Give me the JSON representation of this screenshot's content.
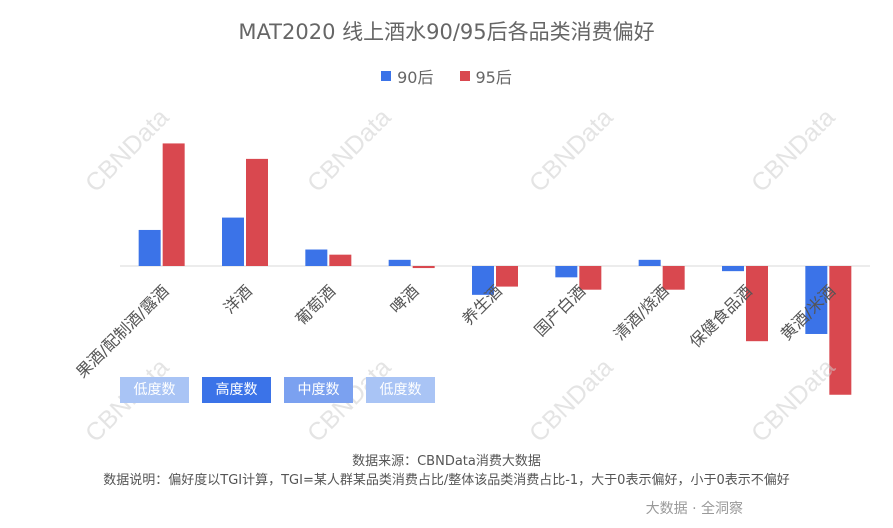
{
  "title": "MAT2020 线上酒水90/95后各品类消费偏好",
  "colors": {
    "series_90": "#3b73e8",
    "series_95": "#d9484f"
  },
  "chart_data": {
    "type": "bar",
    "categories": [
      "果酒/配制酒/露酒",
      "洋酒",
      "葡萄酒",
      "啤酒",
      "养生酒",
      "国产白酒",
      "清酒/烧酒",
      "保健食品酒",
      "黄酒/米酒"
    ],
    "series": [
      {
        "name": "90后",
        "values": [
          0.35,
          0.47,
          0.16,
          0.06,
          -0.28,
          -0.11,
          0.06,
          -0.05,
          -0.66
        ]
      },
      {
        "name": "95后",
        "values": [
          1.19,
          1.04,
          0.11,
          -0.02,
          -0.2,
          -0.23,
          -0.23,
          -0.73,
          -1.25
        ]
      }
    ],
    "ylim": [
      -1.3,
      1.3
    ],
    "grid": false,
    "legend_position": "top-center"
  },
  "tags": [
    {
      "label": "低度数",
      "color": "#a9c4f5"
    },
    {
      "label": "高度数",
      "color": "#3b73e8"
    },
    {
      "label": "中度数",
      "color": "#7ba1f0"
    },
    {
      "label": "低度数",
      "color": "#a9c4f5"
    }
  ],
  "watermark": "CBNData",
  "source": "数据来源：CBNData消费大数据",
  "note": "数据说明：偏好度以TGI计算，TGI=某人群某品类消费占比/整体该品类消费占比-1，大于0表示偏好，小于0表示不偏好",
  "brand": "大数据 · 全洞察"
}
